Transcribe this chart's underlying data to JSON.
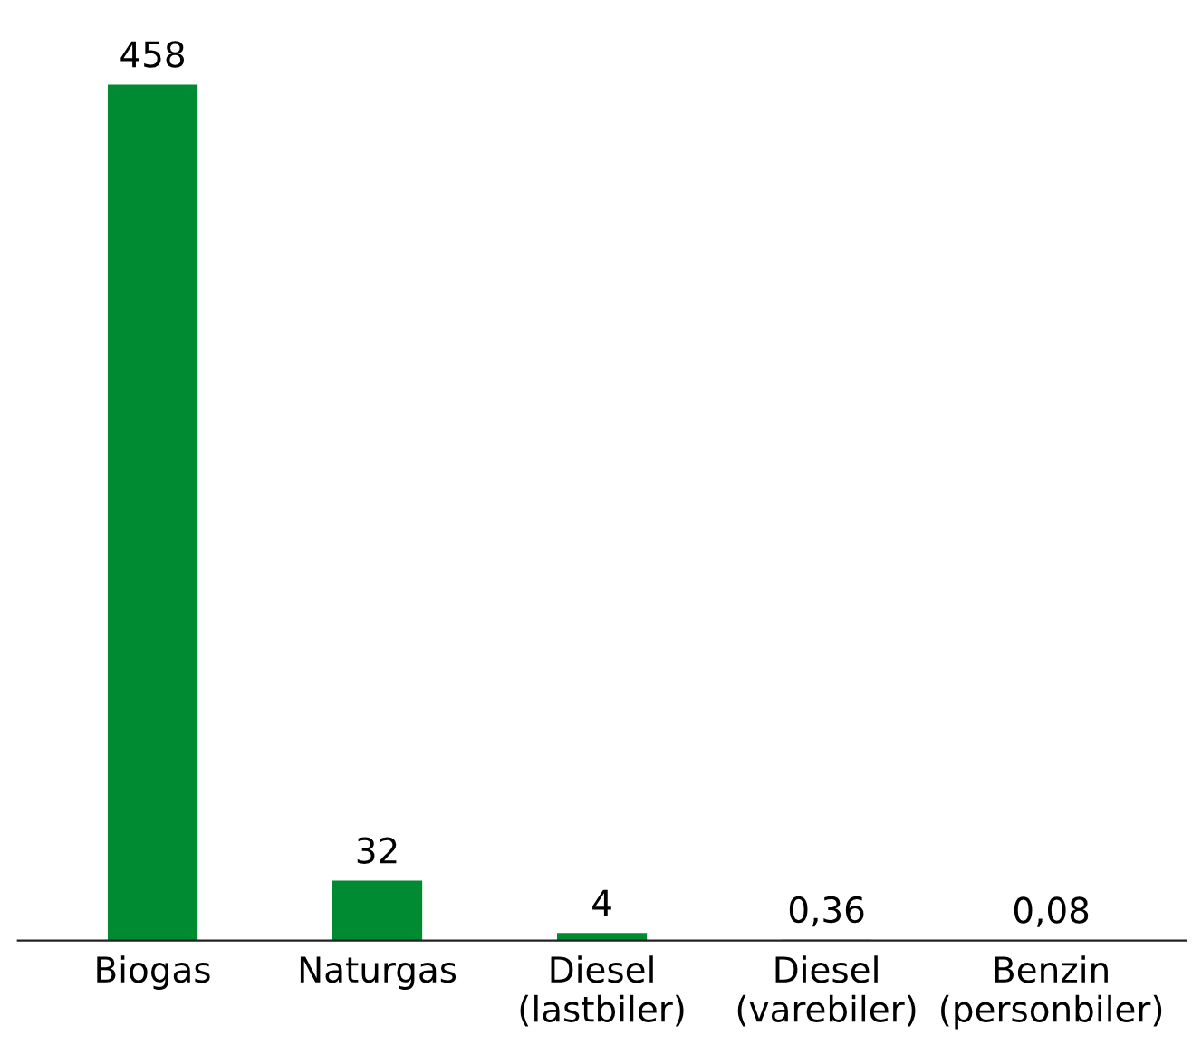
{
  "chart_data": {
    "type": "bar",
    "categories": [
      "Biogas",
      "Naturgas",
      "Diesel\n(lastbiler)",
      "Diesel\n(varebiler)",
      "Benzin\n(personbiler)"
    ],
    "values": [
      458,
      32,
      4,
      0.36,
      0.08
    ],
    "value_labels": [
      "458",
      "32",
      "4",
      "0,36",
      "0,08"
    ],
    "color": "#008a32",
    "grid": false,
    "legend": false
  }
}
